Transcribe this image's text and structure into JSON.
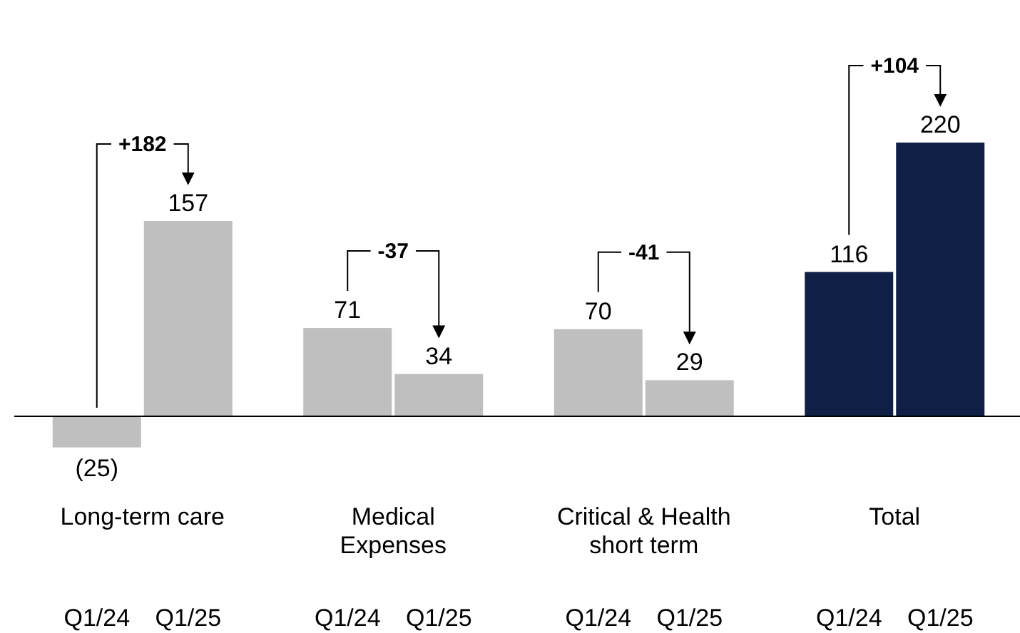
{
  "chart_data": {
    "type": "bar",
    "categories": [
      "Q1/24",
      "Q1/25",
      "Q1/24",
      "Q1/25",
      "Q1/24",
      "Q1/25",
      "Q1/24",
      "Q1/25"
    ],
    "values": [
      -25,
      157,
      71,
      34,
      70,
      29,
      116,
      220
    ],
    "colors": [
      "#bfbfbf",
      "#bfbfbf",
      "#bfbfbf",
      "#bfbfbf",
      "#bfbfbf",
      "#bfbfbf",
      "#0f1f45",
      "#0f1f45"
    ],
    "value_labels": [
      "(25)",
      "157",
      "71",
      "34",
      "70",
      "29",
      "116",
      "220"
    ],
    "annotations": [
      "Long-term care",
      "+182",
      "Medical Expenses",
      "-37",
      "Critical & Health short term",
      "-41",
      "Total",
      "+104"
    ]
  }
}
